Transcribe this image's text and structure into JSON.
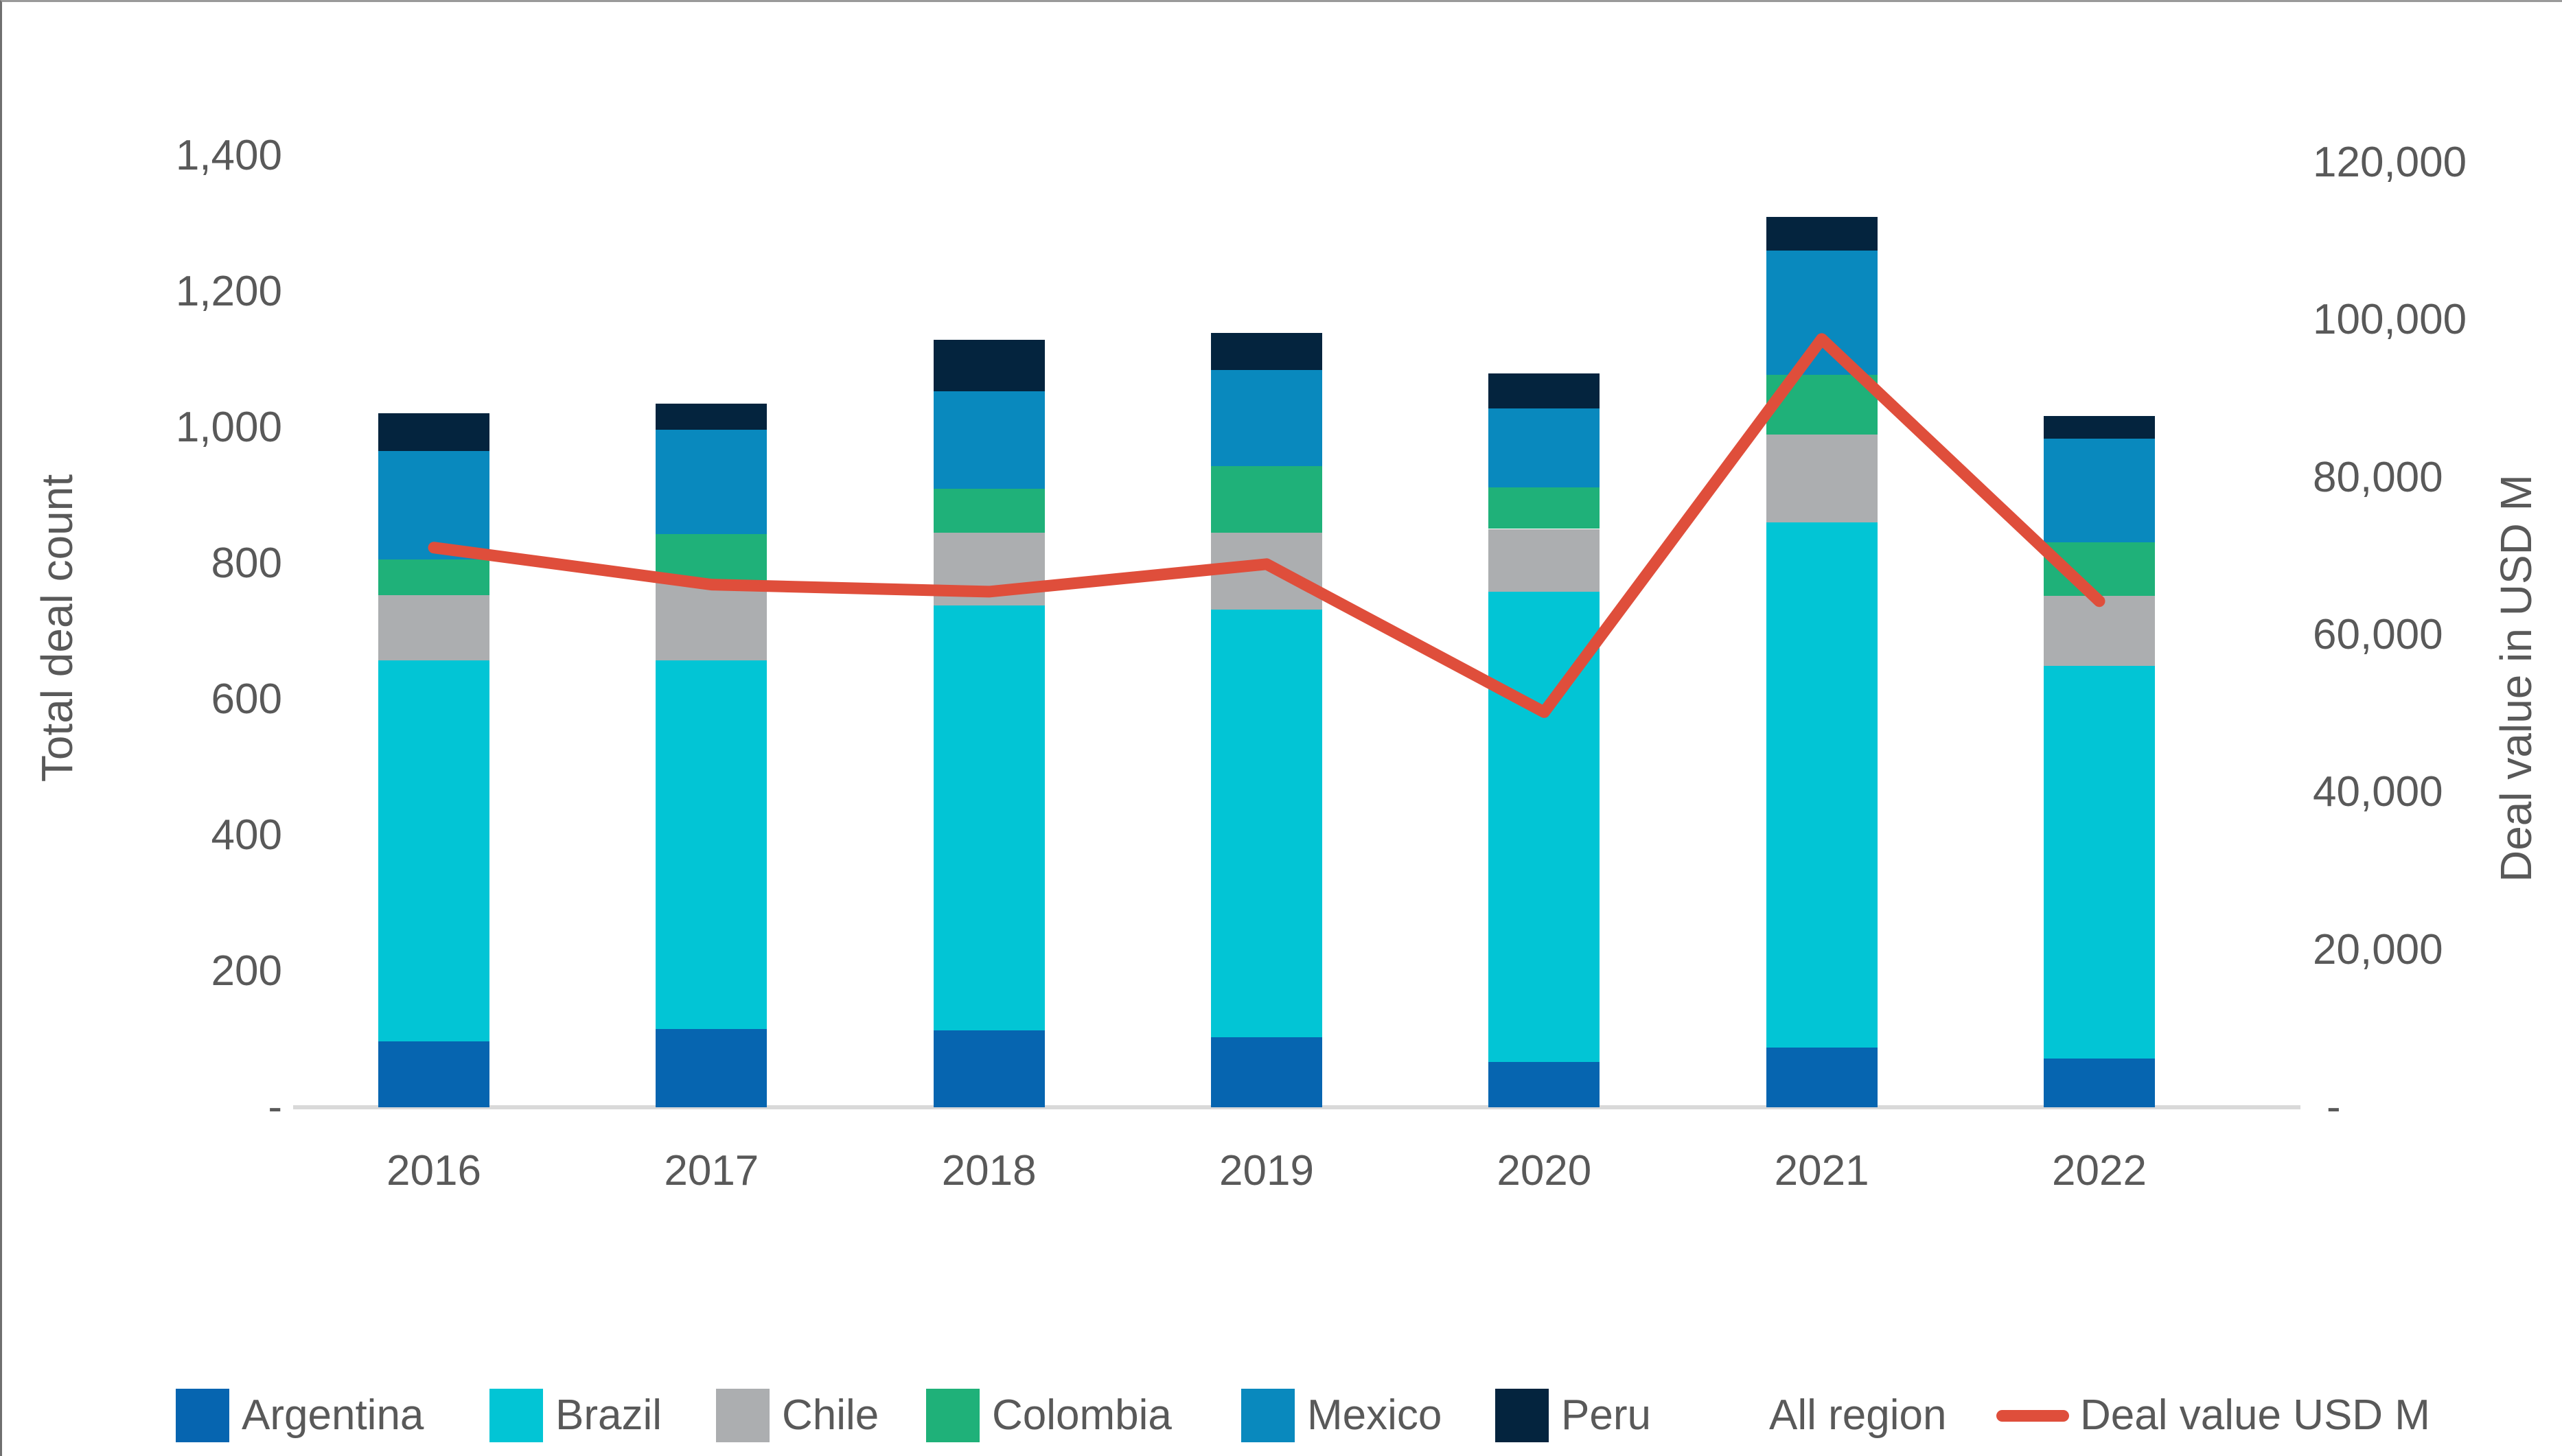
{
  "chart_data": {
    "type": "bar",
    "subtype": "stacked-column-with-line",
    "categories": [
      "2016",
      "2017",
      "2018",
      "2019",
      "2020",
      "2021",
      "2022"
    ],
    "series": [
      {
        "name": "Argentina",
        "color": "#0665b0",
        "values": [
          97,
          115,
          113,
          103,
          67,
          88,
          72
        ]
      },
      {
        "name": "Brazil",
        "color": "#02c5d5",
        "values": [
          561,
          543,
          625,
          629,
          692,
          773,
          577
        ]
      },
      {
        "name": "Chile",
        "color": "#acaeb0",
        "values": [
          96,
          116,
          107,
          113,
          92,
          129,
          104
        ]
      },
      {
        "name": "Colombia",
        "color": "#1fb179",
        "values": [
          52,
          69,
          65,
          98,
          61,
          88,
          78
        ]
      },
      {
        "name": "Mexico",
        "color": "#0989be",
        "values": [
          160,
          154,
          144,
          142,
          116,
          183,
          153
        ]
      },
      {
        "name": "Peru",
        "color": "#04243e",
        "values": [
          55,
          38,
          75,
          54,
          52,
          49,
          33
        ]
      }
    ],
    "bar_totals": [
      1021,
      1035,
      1129,
      1139,
      1080,
      1310,
      1017
    ],
    "line_series": {
      "name": "Deal value USD M",
      "color": "#df4e3b",
      "values": [
        71100,
        66400,
        65500,
        69000,
        50200,
        97600,
        64300
      ]
    },
    "left_axis": {
      "title": "Total deal count",
      "min": 0,
      "max": 1400,
      "tick_values": [
        0,
        200,
        400,
        600,
        800,
        1000,
        1200,
        1400
      ],
      "tick_labels": [
        "-",
        "200",
        "400",
        "600",
        "800",
        "1,000",
        "1,200",
        "1,400"
      ]
    },
    "right_axis": {
      "title": "Deal value in USD M",
      "min": 0,
      "max": 120000,
      "tick_values": [
        0,
        20000,
        40000,
        60000,
        80000,
        100000,
        120000
      ],
      "tick_labels": [
        "-",
        "20,000",
        "40,000",
        "60,000",
        "80,000",
        "100,000",
        "120,000"
      ]
    },
    "grid": "off",
    "legend_position": "bottom",
    "legend": {
      "items": [
        {
          "label": "Argentina",
          "type": "swatch",
          "color": "#0665b0",
          "x": 253
        },
        {
          "label": "Brazil",
          "type": "swatch",
          "color": "#02c5d5",
          "x": 710
        },
        {
          "label": "Chile",
          "type": "swatch",
          "color": "#acaeb0",
          "x": 1040
        },
        {
          "label": "Colombia",
          "type": "swatch",
          "color": "#1fb179",
          "x": 1346
        },
        {
          "label": "Mexico",
          "type": "swatch",
          "color": "#0989be",
          "x": 1805
        },
        {
          "label": "Peru",
          "type": "swatch",
          "color": "#04243e",
          "x": 2175
        },
        {
          "label": "All region",
          "type": "text",
          "color": "",
          "x": 2574
        },
        {
          "label": "Deal value USD M",
          "type": "line",
          "color": "#df4e3b",
          "x": 2905
        }
      ]
    }
  },
  "colors": {
    "tick_text": "#595959",
    "axis_line": "#d9d9d9",
    "background": "#ffffff"
  }
}
